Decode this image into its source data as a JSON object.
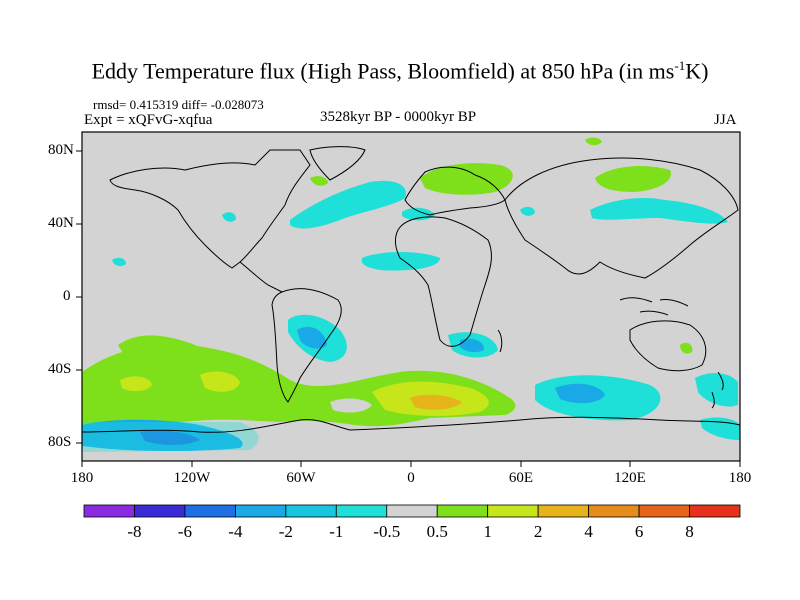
{
  "title": "Eddy Temperature flux (High Pass, Bloomfield) at 850 hPa (in ms",
  "title_sup": "-1",
  "title_tail": "K)",
  "stats": "rmsd= 0.415319 diff= -0.028073",
  "experiment": "Expt = xQFvG-xqfua",
  "period": "3528kyr BP - 0000kyr BP",
  "season": "JJA",
  "map": {
    "projection": "cylindrical equidistant",
    "background_color": "#d3d3d3",
    "lat_ticks": [
      "80N",
      "40N",
      "0",
      "40S",
      "80S"
    ],
    "lon_ticks": [
      "180",
      "120W",
      "60W",
      "0",
      "60E",
      "120E",
      "180"
    ]
  },
  "colorbar": {
    "levels": [
      "-8",
      "-6",
      "-4",
      "-2",
      "-1",
      "-0.5",
      "0.5",
      "1",
      "2",
      "4",
      "6",
      "8"
    ],
    "colors": [
      "#8a2be2",
      "#3a2bd6",
      "#1e6fe6",
      "#19a9e6",
      "#18c6e0",
      "#1ee0d8",
      "#d3d3d3",
      "#7ee01a",
      "#c6e61a",
      "#e6b41a",
      "#e68c1a",
      "#e6641a",
      "#e6321a"
    ]
  }
}
